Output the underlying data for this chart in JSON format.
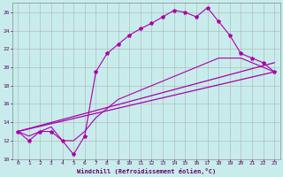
{
  "background_color": "#c8ecec",
  "grid_color": "#b0b0b0",
  "line_color": "#aa00aa",
  "xlim": [
    -0.5,
    23.5
  ],
  "ylim": [
    10,
    27
  ],
  "yticks": [
    10,
    12,
    14,
    16,
    18,
    20,
    22,
    24,
    26
  ],
  "xticks": [
    0,
    1,
    2,
    3,
    4,
    5,
    6,
    7,
    8,
    9,
    10,
    11,
    12,
    13,
    14,
    15,
    16,
    17,
    18,
    19,
    20,
    21,
    22,
    23
  ],
  "xlabel": "Windchill (Refroidissement éolien,°C)",
  "line1_x": [
    0,
    1,
    2,
    3,
    4,
    5,
    6,
    7,
    8,
    9,
    10,
    11,
    12,
    13,
    14,
    15,
    16,
    17,
    18,
    19,
    20,
    21,
    22,
    23
  ],
  "line1_y": [
    13.0,
    12.0,
    13.0,
    13.0,
    12.0,
    10.5,
    12.5,
    19.5,
    21.5,
    22.5,
    23.5,
    24.2,
    24.8,
    25.5,
    26.2,
    26.0,
    25.5,
    26.5,
    25.0,
    23.5,
    21.5,
    21.0,
    20.5,
    19.5
  ],
  "line2_x": [
    0,
    23
  ],
  "line2_y": [
    13.0,
    19.5
  ],
  "line3_x": [
    0,
    23
  ],
  "line3_y": [
    13.0,
    20.5
  ],
  "line4_x": [
    0,
    1,
    2,
    3,
    4,
    5,
    6,
    7,
    8,
    9,
    10,
    11,
    12,
    13,
    14,
    15,
    16,
    17,
    18,
    19,
    20,
    21,
    22,
    23
  ],
  "line4_y": [
    13.0,
    12.5,
    13.0,
    13.5,
    12.0,
    12.0,
    13.0,
    14.5,
    15.5,
    16.5,
    17.0,
    17.5,
    18.0,
    18.5,
    19.0,
    19.5,
    20.0,
    20.5,
    21.0,
    21.0,
    21.0,
    20.5,
    20.0,
    19.5
  ]
}
